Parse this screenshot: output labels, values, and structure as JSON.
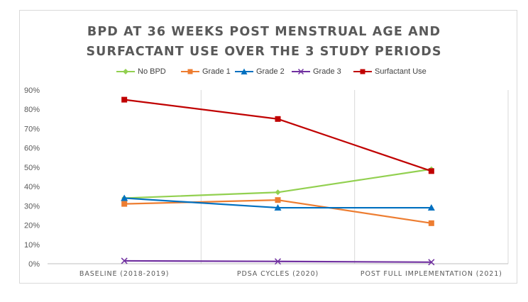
{
  "chart_data": {
    "type": "line",
    "title_lines": [
      "BPD AT 36 WEEKS POST MENSTRUAL AGE AND",
      "SURFACTANT USE OVER THE 3 STUDY PERIODS"
    ],
    "categories": [
      "BASELINE (2018-2019)",
      "PDSA CYCLES (2020)",
      "POST FULL IMPLEMENTATION (2021)"
    ],
    "y_ticks": [
      "0%",
      "10%",
      "20%",
      "30%",
      "40%",
      "50%",
      "60%",
      "70%",
      "80%",
      "90%"
    ],
    "ylim": [
      0,
      90
    ],
    "grid": "vertical category separators",
    "legend_position": "top",
    "series": [
      {
        "name": "No BPD",
        "values": [
          34,
          37,
          49
        ],
        "color": "#92d050",
        "marker": "diamond"
      },
      {
        "name": "Grade 1",
        "values": [
          31,
          33,
          21
        ],
        "color": "#ed7d31",
        "marker": "square"
      },
      {
        "name": "Grade 2",
        "values": [
          34,
          29,
          29
        ],
        "color": "#0070c0",
        "marker": "triangle"
      },
      {
        "name": "Grade 3",
        "values": [
          1.5,
          1.2,
          0.8
        ],
        "color": "#7030a0",
        "marker": "x"
      },
      {
        "name": "Surfactant Use",
        "values": [
          85,
          75,
          48
        ],
        "color": "#c00000",
        "marker": "square"
      }
    ]
  }
}
